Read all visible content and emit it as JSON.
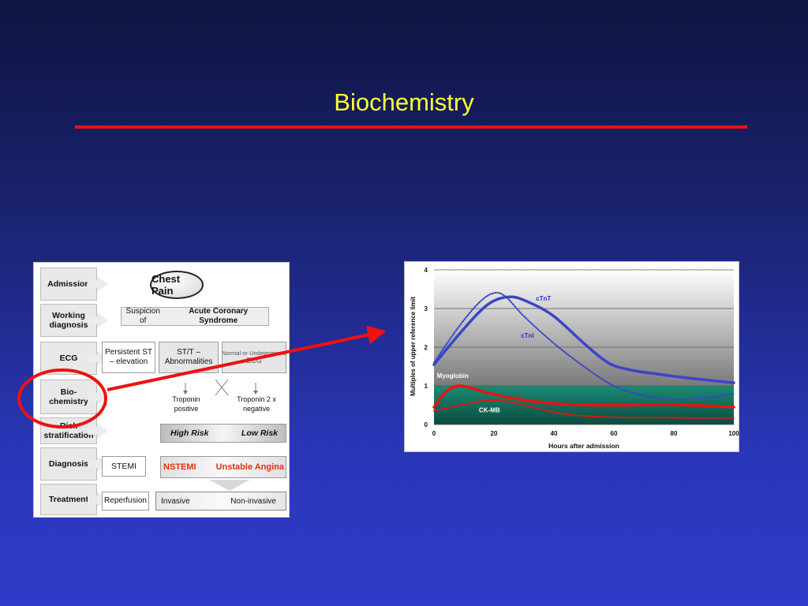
{
  "slide": {
    "title": "Biochemistry",
    "colors": {
      "title": "#ffff33",
      "rule": "#ee1111",
      "highlight": "#ee1111"
    }
  },
  "flowchart": {
    "steps": [
      {
        "label": "Admission"
      },
      {
        "label": "Working diagnosis"
      },
      {
        "label": "ECG"
      },
      {
        "label": "Bio-chemistry"
      },
      {
        "label": "Risk stratification"
      },
      {
        "label": "Diagnosis"
      },
      {
        "label": "Treatment"
      }
    ],
    "chest_pain": "Chest Pain",
    "suspicion_prefix": "Suspicion of",
    "suspicion_main": "Acute Coronary Syndrome",
    "ecg_persistent": "Persistent ST – elevation",
    "ecg_st_t": "ST/T – Abnormalities",
    "ecg_normal": "Normal or Undetermined",
    "ecg_normal_sub": "ECG",
    "troponin_positive": "Troponin positive",
    "troponin_negative": "Troponin 2 x negative",
    "high_risk": "High Risk",
    "low_risk": "Low Risk",
    "stemi": "STEMI",
    "nstemi": "NSTEMI",
    "unstable_angina": "Unstable Angina",
    "reperfusion": "Reperfusion",
    "invasive": "Invasive",
    "non_invasive": "Non-invasive"
  },
  "chart_data": {
    "type": "line",
    "xlabel": "Hours after admission",
    "ylabel": "Multiples of upper reference limit",
    "xlim": [
      0,
      100
    ],
    "ylim": [
      0,
      4
    ],
    "x_ticks": [
      0,
      20,
      40,
      60,
      80,
      100
    ],
    "y_ticks": [
      0,
      1,
      2,
      3,
      4
    ],
    "grid": true,
    "series": [
      {
        "name": "cTnT",
        "color": "#3a45c8",
        "style": "solid",
        "x": [
          0,
          8,
          15,
          20,
          26,
          32,
          40,
          50,
          58,
          65,
          75,
          85,
          100
        ],
        "y": [
          1.55,
          2.3,
          2.9,
          3.2,
          3.3,
          3.15,
          2.8,
          2.1,
          1.6,
          1.42,
          1.3,
          1.2,
          1.08
        ]
      },
      {
        "name": "cTnI",
        "color": "#3a45c8",
        "style": "dotted",
        "x": [
          0,
          8,
          15,
          20,
          24,
          30,
          40,
          50,
          60,
          70,
          80,
          90,
          100
        ],
        "y": [
          1.6,
          2.5,
          3.15,
          3.4,
          3.3,
          2.8,
          2.1,
          1.5,
          1.0,
          0.75,
          0.65,
          0.68,
          0.8
        ]
      },
      {
        "name": "Myoglobin",
        "color": "#ee1111",
        "style": "solid",
        "x": [
          0,
          4,
          8,
          12,
          18,
          25,
          35,
          45,
          55,
          65,
          75,
          85,
          100
        ],
        "y": [
          0.45,
          0.85,
          1.0,
          0.95,
          0.82,
          0.7,
          0.58,
          0.52,
          0.5,
          0.5,
          0.52,
          0.5,
          0.45
        ]
      },
      {
        "name": "CK-MB",
        "color": "#ee1111",
        "style": "dotted",
        "x": [
          0,
          6,
          12,
          18,
          24,
          30,
          38,
          46,
          55,
          65,
          75,
          85,
          100
        ],
        "y": [
          0.35,
          0.45,
          0.55,
          0.62,
          0.6,
          0.5,
          0.35,
          0.25,
          0.2,
          0.18,
          0.18,
          0.17,
          0.17
        ]
      }
    ]
  }
}
